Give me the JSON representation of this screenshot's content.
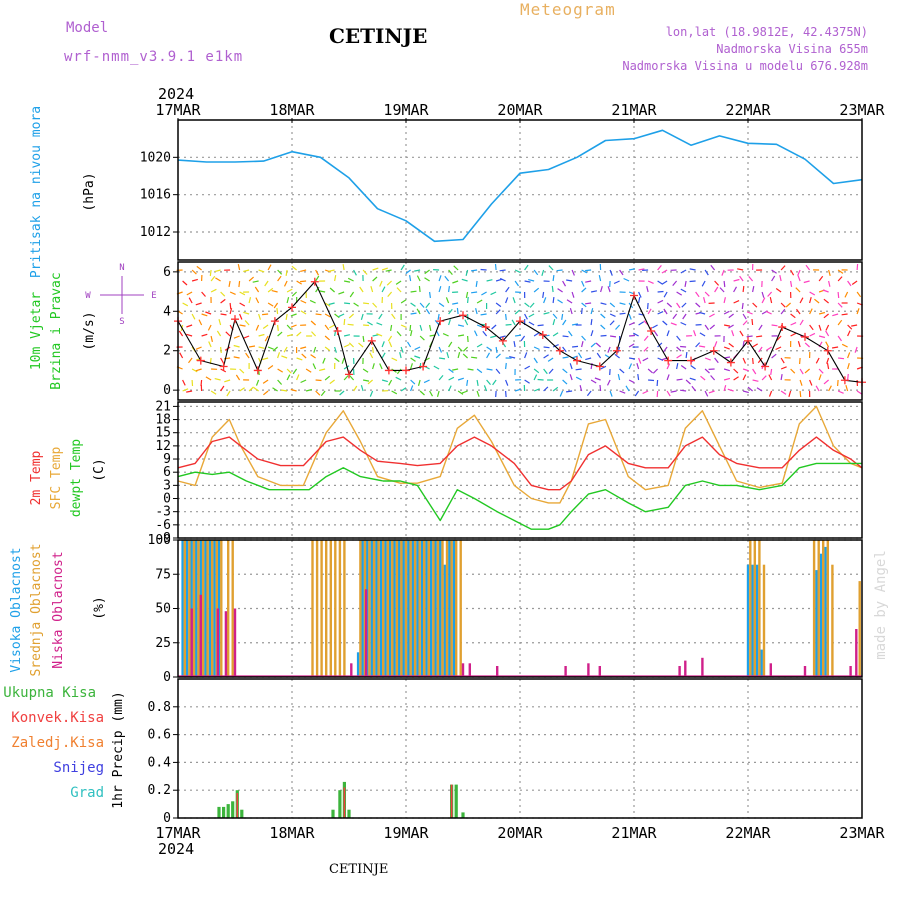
{
  "header": {
    "model_label": "Model",
    "model_name": "wrf-nmm_v3.9.1 e1km",
    "station": "CETINJE",
    "meteogram": "Meteogram",
    "lonlat": "lon,lat (18.9812E, 42.4375N)",
    "altitude": "Nadmorska Visina 655m",
    "model_altitude": "Nadmorska Visina u modelu 676.928m",
    "credit": "made by Angel",
    "footer": "CETINJE"
  },
  "time_axis": {
    "year": "2024",
    "labels": [
      "17MAR",
      "18MAR",
      "19MAR",
      "20MAR",
      "21MAR",
      "22MAR",
      "23MAR"
    ]
  },
  "colors": {
    "pressure": "#1ea0e8",
    "temp2m": "#f03030",
    "sfctemp": "#e8a838",
    "dewpt": "#22c822",
    "high_cloud": "#1ea0e8",
    "mid_cloud": "#e0a030",
    "low_cloud": "#d0208a",
    "precip_total": "#3cb43c",
    "precip_conv": "#f04040",
    "precip_frozen": "#f08030",
    "snow": "#4040e0",
    "graupel": "#30c0c0",
    "wind_speed_line": "#000000",
    "gust_marker": "#ff3030"
  },
  "chart_data": [
    {
      "type": "line",
      "panel": "pressure",
      "ylabel_lines": [
        "Pritisak na nivou mora",
        "(hPa)"
      ],
      "ylim": [
        1009,
        1024
      ],
      "yticks": [
        1012,
        1016,
        1020
      ],
      "x_unit": "days since 17MAR 00:00",
      "series": [
        {
          "name": "Pritisak na nivou mora",
          "x": [
            0,
            0.25,
            0.5,
            0.75,
            1,
            1.25,
            1.5,
            1.75,
            2,
            2.25,
            2.5,
            2.75,
            3,
            3.25,
            3.5,
            3.75,
            4,
            4.25,
            4.5,
            4.75,
            5,
            5.25,
            5.5,
            5.75,
            6
          ],
          "y": [
            1019.7,
            1019.5,
            1019.5,
            1019.6,
            1020.6,
            1020.0,
            1017.8,
            1014.5,
            1013.2,
            1011.0,
            1011.2,
            1015.0,
            1018.3,
            1018.7,
            1020.0,
            1021.8,
            1022.0,
            1022.9,
            1021.3,
            1022.3,
            1021.5,
            1021.4,
            1019.8,
            1017.2,
            1017.6
          ]
        }
      ]
    },
    {
      "type": "line",
      "panel": "wind",
      "ylabel_lines": [
        "10m Vjetar",
        "Brzina i Pravac",
        "(m/s)"
      ],
      "compass": {
        "n": "N",
        "w": "W",
        "e": "E",
        "s": "S"
      },
      "ylim": [
        -0.5,
        6.5
      ],
      "yticks": [
        0,
        2,
        4,
        6
      ],
      "series": [
        {
          "name": "10m Vjetar Brzina",
          "x": [
            0,
            0.2,
            0.4,
            0.5,
            0.7,
            0.85,
            1,
            1.2,
            1.4,
            1.5,
            1.7,
            1.85,
            2,
            2.15,
            2.3,
            2.5,
            2.7,
            2.85,
            3,
            3.2,
            3.35,
            3.5,
            3.7,
            3.85,
            4,
            4.15,
            4.3,
            4.5,
            4.7,
            4.85,
            5,
            5.15,
            5.3,
            5.5,
            5.7,
            5.85,
            6
          ],
          "y": [
            3.5,
            1.5,
            1.2,
            3.6,
            1.0,
            3.5,
            4.2,
            5.5,
            3.0,
            0.8,
            2.5,
            1.0,
            1.0,
            1.2,
            3.5,
            3.8,
            3.2,
            2.5,
            3.5,
            2.8,
            2.0,
            1.5,
            1.2,
            2.0,
            4.8,
            3.0,
            1.5,
            1.5,
            2.0,
            1.4,
            2.5,
            1.2,
            3.2,
            2.7,
            2.0,
            0.5,
            0.4
          ]
        }
      ]
    },
    {
      "type": "line",
      "panel": "temperature",
      "ylabel_lines": [
        "2m Temp",
        "SFC Temp",
        "dewpt Temp",
        "(C)"
      ],
      "ylim": [
        -9,
        22
      ],
      "yticks": [
        -9,
        -6,
        -3,
        0,
        3,
        6,
        9,
        12,
        15,
        18,
        21
      ],
      "series": [
        {
          "name": "2m Temp",
          "x": [
            0,
            0.15,
            0.3,
            0.45,
            0.55,
            0.7,
            0.9,
            1.1,
            1.3,
            1.45,
            1.6,
            1.75,
            1.95,
            2.1,
            2.3,
            2.45,
            2.6,
            2.75,
            2.95,
            3.1,
            3.25,
            3.35,
            3.45,
            3.6,
            3.75,
            3.95,
            4.1,
            4.3,
            4.45,
            4.6,
            4.75,
            4.9,
            5.1,
            5.3,
            5.45,
            5.6,
            5.75,
            5.9,
            6
          ],
          "y": [
            7,
            8,
            13,
            14,
            12,
            9,
            7.5,
            7.5,
            13,
            14,
            11,
            8.5,
            8,
            7.5,
            8,
            12,
            14,
            12,
            8,
            3,
            2,
            2,
            4,
            10,
            12,
            8,
            7,
            7,
            12,
            14,
            10,
            8,
            7,
            7,
            11,
            14,
            11,
            9,
            7
          ]
        },
        {
          "name": "SFC Temp",
          "x": [
            0,
            0.15,
            0.3,
            0.45,
            0.55,
            0.7,
            0.9,
            1.1,
            1.3,
            1.45,
            1.6,
            1.75,
            1.95,
            2.1,
            2.3,
            2.45,
            2.6,
            2.75,
            2.95,
            3.1,
            3.25,
            3.35,
            3.45,
            3.6,
            3.75,
            3.95,
            4.1,
            4.3,
            4.45,
            4.6,
            4.75,
            4.9,
            5.1,
            5.3,
            5.45,
            5.6,
            5.75,
            5.9,
            6
          ],
          "y": [
            4,
            3,
            14,
            18,
            12,
            5,
            3,
            3,
            15,
            20,
            13,
            5,
            3.5,
            3.5,
            5,
            16,
            19,
            13,
            3,
            0,
            -1,
            -1,
            4,
            17,
            18,
            5,
            2,
            3,
            16,
            20,
            12,
            4,
            2.5,
            3.5,
            17,
            21,
            12,
            8,
            7
          ]
        },
        {
          "name": "dewpt Temp",
          "x": [
            0,
            0.15,
            0.3,
            0.45,
            0.6,
            0.8,
            1.0,
            1.15,
            1.3,
            1.45,
            1.6,
            1.8,
            1.95,
            2.1,
            2.3,
            2.45,
            2.6,
            2.8,
            2.95,
            3.1,
            3.25,
            3.35,
            3.45,
            3.6,
            3.75,
            3.95,
            4.1,
            4.3,
            4.45,
            4.6,
            4.75,
            4.9,
            5.1,
            5.3,
            5.45,
            5.6,
            5.75,
            5.9,
            6
          ],
          "y": [
            5,
            6,
            5.5,
            6,
            4,
            2,
            2,
            2,
            5,
            7,
            5,
            4,
            4,
            3,
            -5,
            2,
            0,
            -3,
            -5,
            -7,
            -7,
            -6,
            -3,
            1,
            2,
            -1,
            -3,
            -2,
            3,
            4,
            3,
            3,
            2,
            3,
            7,
            8,
            8,
            8,
            8
          ]
        }
      ]
    },
    {
      "type": "bar",
      "panel": "cloud",
      "ylabel_lines": [
        "Visoka Oblacnost",
        "Srednja Oblacnost",
        "Niska Oblacnost",
        "(%)"
      ],
      "ylim": [
        0,
        100
      ],
      "yticks": [
        0,
        25,
        50,
        75,
        100
      ],
      "series": [
        {
          "name": "Visoka Oblacnost",
          "x": [
            0.04,
            0.08,
            0.12,
            0.16,
            0.2,
            0.24,
            0.28,
            0.32,
            0.36,
            1.58,
            1.62,
            1.66,
            1.7,
            1.74,
            1.78,
            1.82,
            1.86,
            1.9,
            1.94,
            1.98,
            2.02,
            2.06,
            2.1,
            2.14,
            2.18,
            2.22,
            2.26,
            2.3,
            2.34,
            2.38,
            2.42,
            5.0,
            5.04,
            5.08,
            5.12,
            5.6,
            5.64,
            5.68
          ],
          "y": [
            100,
            100,
            100,
            100,
            100,
            100,
            100,
            100,
            100,
            18,
            100,
            100,
            100,
            100,
            100,
            100,
            100,
            100,
            100,
            100,
            100,
            100,
            100,
            100,
            100,
            100,
            100,
            100,
            82,
            100,
            100,
            82,
            82,
            82,
            20,
            78,
            90,
            95
          ]
        },
        {
          "name": "Srednja Oblacnost",
          "x": [
            0.06,
            0.1,
            0.14,
            0.18,
            0.22,
            0.26,
            0.3,
            0.34,
            0.38,
            0.44,
            0.48,
            1.18,
            1.22,
            1.26,
            1.3,
            1.34,
            1.38,
            1.42,
            1.46,
            1.6,
            1.64,
            1.68,
            1.72,
            1.76,
            1.8,
            1.84,
            1.88,
            1.92,
            1.96,
            2.0,
            2.04,
            2.08,
            2.12,
            2.16,
            2.2,
            2.24,
            2.28,
            2.32,
            2.36,
            2.4,
            2.44,
            2.48,
            5.02,
            5.06,
            5.1,
            5.14,
            5.58,
            5.62,
            5.66,
            5.7,
            5.74,
            5.98
          ],
          "y": [
            100,
            100,
            100,
            100,
            100,
            100,
            100,
            100,
            100,
            100,
            100,
            100,
            100,
            100,
            100,
            100,
            100,
            100,
            100,
            100,
            100,
            100,
            100,
            100,
            100,
            100,
            100,
            100,
            100,
            100,
            100,
            100,
            100,
            100,
            100,
            100,
            100,
            100,
            100,
            100,
            100,
            100,
            100,
            100,
            100,
            82,
            100,
            100,
            100,
            100,
            82,
            70
          ]
        },
        {
          "name": "Niska Oblacnost",
          "x": [
            0.12,
            0.2,
            0.35,
            0.42,
            0.5,
            1.52,
            1.65,
            2.5,
            2.56,
            2.8,
            3.4,
            3.6,
            3.7,
            4.4,
            4.45,
            4.6,
            5.2,
            5.5,
            5.9,
            5.95
          ],
          "y": [
            50,
            60,
            50,
            48,
            50,
            10,
            64,
            10,
            10,
            8,
            8,
            10,
            8,
            8,
            12,
            14,
            10,
            8,
            8,
            35
          ]
        }
      ]
    },
    {
      "type": "bar",
      "panel": "precip",
      "ylabel_lines": [
        "1hr Precip (mm)"
      ],
      "legend": [
        "Ukupna Kisa",
        "Konvek.Kisa",
        "Zaledj.Kisa",
        "Snijeg",
        "Grad"
      ],
      "ylim": [
        0,
        1.0
      ],
      "yticks": [
        0,
        0.2,
        0.4,
        0.6,
        0.8
      ],
      "series": [
        {
          "name": "Ukupna Kisa",
          "x": [
            0.36,
            0.4,
            0.44,
            0.48,
            0.52,
            0.56,
            1.36,
            1.42,
            1.46,
            1.5,
            1.54,
            2.4,
            2.44,
            2.5
          ],
          "y": [
            0.08,
            0.08,
            0.1,
            0.12,
            0.2,
            0.06,
            0.06,
            0.2,
            0.26,
            0.06,
            0.0,
            0.24,
            0.24,
            0.04
          ]
        },
        {
          "name": "Konvek.Kisa",
          "x": [
            0.52,
            1.46,
            2.4
          ],
          "y": [
            0.18,
            0.22,
            0.24
          ]
        }
      ]
    }
  ]
}
